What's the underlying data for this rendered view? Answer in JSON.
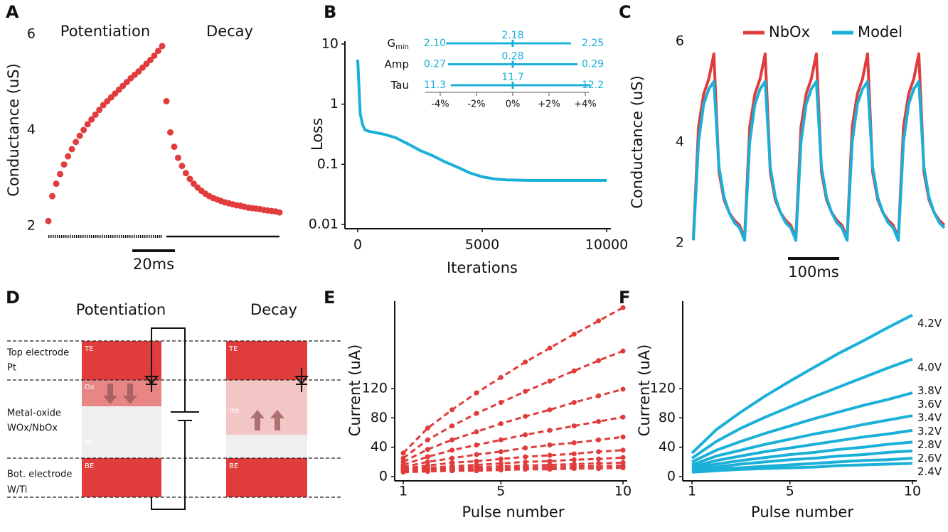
{
  "chart_data": [
    {
      "label": "A",
      "type": "scatter",
      "ylabel": "Conductance (uS)",
      "ylim": [
        2,
        6
      ],
      "yticks": [
        2,
        4,
        6
      ],
      "scale_bar": "20ms",
      "series": [
        {
          "name": "Potentiation",
          "color": "#e03c3c",
          "values": [
            2.1,
            2.62,
            2.88,
            3.08,
            3.28,
            3.45,
            3.6,
            3.75,
            3.88,
            4.0,
            4.12,
            4.22,
            4.32,
            4.42,
            4.52,
            4.6,
            4.68,
            4.76,
            4.84,
            4.92,
            5.0,
            5.08,
            5.15,
            5.22,
            5.3,
            5.38,
            5.46,
            5.55,
            5.65,
            5.75
          ]
        },
        {
          "name": "Decay",
          "color": "#e03c3c",
          "values": [
            4.6,
            3.95,
            3.65,
            3.42,
            3.25,
            3.1,
            2.98,
            2.88,
            2.8,
            2.73,
            2.67,
            2.62,
            2.58,
            2.55,
            2.52,
            2.49,
            2.47,
            2.45,
            2.43,
            2.42,
            2.4,
            2.38,
            2.37,
            2.36,
            2.35,
            2.33,
            2.32,
            2.31,
            2.3,
            2.28
          ]
        }
      ]
    },
    {
      "label": "B",
      "type": "line",
      "log_y": true,
      "color": "#1ab0d8",
      "xlabel": "Iterations",
      "ylabel": "Loss",
      "x": [
        0,
        100,
        200,
        300,
        500,
        1000,
        1500,
        2000,
        2500,
        3000,
        3500,
        4000,
        4500,
        5000,
        5500,
        6000,
        7000,
        8000,
        9000,
        10000
      ],
      "values": [
        5.5,
        0.7,
        0.45,
        0.37,
        0.35,
        0.32,
        0.28,
        0.22,
        0.17,
        0.14,
        0.11,
        0.09,
        0.072,
        0.062,
        0.057,
        0.055,
        0.054,
        0.054,
        0.054,
        0.054
      ],
      "xlim": [
        0,
        10000
      ],
      "xticks": [
        0,
        5000,
        10000
      ],
      "ylim": [
        0.01,
        10
      ],
      "yticks": [
        0.01,
        0.1,
        1,
        10
      ],
      "inset": {
        "rows": [
          {
            "name": "G",
            "subscript": "min",
            "values": [
              2.1,
              2.18,
              2.25
            ],
            "value_labels": [
              "2.10",
              "2.18",
              "2.25"
            ]
          },
          {
            "name": "Amp",
            "values": [
              0.27,
              0.28,
              0.29
            ]
          },
          {
            "name": "Tau",
            "values": [
              11.3,
              11.7,
              12.2
            ]
          }
        ],
        "xticks": [
          {
            "value": -4,
            "label": "-4%"
          },
          {
            "value": -2,
            "label": "-2%"
          },
          {
            "value": 0,
            "label": "0%"
          },
          {
            "value": 2,
            "label": "+2%"
          },
          {
            "value": 4,
            "label": "+4%"
          }
        ]
      }
    },
    {
      "label": "C",
      "type": "line",
      "ylabel": "Conductance (uS)",
      "ylim": [
        2,
        6
      ],
      "yticks": [
        2,
        4,
        6
      ],
      "xlim": [
        0,
        490
      ],
      "scale_bar": "100ms",
      "x": [
        0,
        10,
        20,
        30,
        40,
        50,
        60,
        70,
        80,
        90,
        100,
        110,
        120,
        130,
        140,
        150,
        160,
        170,
        180,
        190,
        200,
        210,
        220,
        230,
        240,
        250,
        260,
        270,
        280,
        290,
        300,
        310,
        320,
        330,
        340,
        350,
        360,
        370,
        380,
        390,
        400,
        410,
        420,
        430,
        440,
        450,
        460,
        470,
        480,
        490
      ],
      "series": [
        {
          "name": "NbOx",
          "color": "#e03c3c",
          "values": [
            2.1,
            4.3,
            4.95,
            5.25,
            5.75,
            3.4,
            2.85,
            2.6,
            2.45,
            2.35,
            2.1,
            4.3,
            4.95,
            5.25,
            5.75,
            3.4,
            2.85,
            2.6,
            2.45,
            2.35,
            2.1,
            4.3,
            4.95,
            5.25,
            5.75,
            3.4,
            2.85,
            2.6,
            2.45,
            2.35,
            2.1,
            4.3,
            4.95,
            5.25,
            5.75,
            3.4,
            2.85,
            2.6,
            2.45,
            2.35,
            2.1,
            4.3,
            4.95,
            5.25,
            5.75,
            3.4,
            2.85,
            2.6,
            2.45,
            2.35
          ]
        },
        {
          "name": "Model",
          "color": "#1ab0d8",
          "values": [
            2.05,
            4.0,
            4.75,
            5.05,
            5.2,
            3.5,
            2.9,
            2.6,
            2.4,
            2.3,
            2.05,
            4.0,
            4.75,
            5.05,
            5.2,
            3.5,
            2.9,
            2.6,
            2.4,
            2.3,
            2.05,
            4.0,
            4.75,
            5.05,
            5.2,
            3.5,
            2.9,
            2.6,
            2.4,
            2.3,
            2.05,
            4.0,
            4.75,
            5.05,
            5.2,
            3.5,
            2.9,
            2.6,
            2.4,
            2.3,
            2.05,
            4.0,
            4.75,
            5.05,
            5.2,
            3.5,
            2.9,
            2.6,
            2.4,
            2.3
          ]
        }
      ]
    },
    {
      "label": "E",
      "type": "line",
      "dashed": true,
      "markers": true,
      "color": "#e03c3c",
      "xlabel": "Pulse number",
      "ylabel": "Current (uA)",
      "x": [
        1,
        2,
        3,
        4,
        5,
        6,
        7,
        8,
        9,
        10
      ],
      "xlim": [
        1,
        10
      ],
      "xticks": [
        1,
        5,
        10
      ],
      "ylim": [
        0,
        235
      ],
      "yticks": [
        0,
        40,
        80,
        120
      ],
      "series": [
        {
          "values": [
            32,
            66,
            91,
            114,
            135,
            156,
            175,
            194,
            212,
            230
          ]
        },
        {
          "values": [
            25,
            50,
            69,
            86,
            101,
            116,
            130,
            144,
            158,
            171
          ]
        },
        {
          "values": [
            20,
            37,
            50,
            61,
            72,
            82,
            91,
            101,
            110,
            119
          ]
        },
        {
          "values": [
            16,
            27,
            36,
            43,
            50,
            57,
            63,
            69,
            75,
            81
          ]
        },
        {
          "values": [
            13,
            20,
            25,
            30,
            34,
            39,
            43,
            46,
            50,
            54
          ]
        },
        {
          "values": [
            11,
            15,
            19,
            21,
            24,
            27,
            29,
            31,
            34,
            36
          ]
        },
        {
          "values": [
            9,
            12,
            14,
            16,
            18,
            20,
            21,
            23,
            24,
            26
          ]
        },
        {
          "values": [
            8,
            10,
            11,
            13,
            14,
            15,
            16,
            17,
            18,
            19
          ]
        },
        {
          "values": [
            7,
            8,
            9,
            10,
            11,
            12,
            13,
            14,
            14,
            15
          ]
        },
        {
          "values": [
            6,
            7,
            8,
            8,
            9,
            10,
            10,
            11,
            11,
            12
          ]
        }
      ]
    },
    {
      "label": "F",
      "type": "line",
      "color": "#1ab0d8",
      "xlabel": "Pulse number",
      "ylabel": "Current (uA)",
      "x": [
        1,
        2,
        3,
        4,
        5,
        6,
        7,
        8,
        9,
        10
      ],
      "xlim": [
        1,
        10
      ],
      "xticks": [
        1,
        5,
        10
      ],
      "ylim": [
        0,
        235
      ],
      "yticks": [
        0,
        40,
        80,
        120
      ],
      "series": [
        {
          "name": "4.2V",
          "values": [
            32,
            64,
            88,
            110,
            130,
            149,
            168,
            185,
            203,
            220
          ]
        },
        {
          "name": "4.0V",
          "values": [
            25,
            48,
            66,
            81,
            95,
            109,
            122,
            135,
            148,
            160
          ]
        },
        {
          "name": "3.8V",
          "values": [
            20,
            36,
            48,
            59,
            69,
            79,
            88,
            97,
            105,
            114
          ]
        },
        {
          "name": "3.6V",
          "values": [
            16,
            28,
            36,
            44,
            51,
            58,
            64,
            71,
            77,
            83
          ]
        },
        {
          "name": "3.4V",
          "values": [
            13,
            22,
            28,
            34,
            39,
            44,
            49,
            54,
            58,
            63
          ]
        },
        {
          "name": "3.2V",
          "values": [
            11,
            17,
            22,
            26,
            30,
            33,
            37,
            40,
            44,
            47
          ]
        },
        {
          "name": "2.8V",
          "values": [
            9,
            13,
            17,
            20,
            23,
            25,
            28,
            30,
            33,
            35
          ]
        },
        {
          "name": "2.6V",
          "values": [
            7,
            10,
            12,
            14,
            16,
            18,
            20,
            22,
            23,
            25
          ]
        },
        {
          "name": "2.4V",
          "values": [
            6,
            8,
            10,
            11,
            12,
            13,
            15,
            16,
            17,
            18
          ]
        }
      ]
    }
  ],
  "diagram": {
    "label": "D",
    "titles": [
      "Potentiation",
      "Decay"
    ],
    "layers": [
      {
        "name": "Top electrode",
        "material": "Pt"
      },
      {
        "name": "Metal-oxide",
        "material": "WOx/NbOx"
      },
      {
        "name": "Bot. electrode",
        "material": "W/Ti"
      }
    ],
    "left_regions": [
      "TE",
      "Ox",
      "Vo",
      "BE"
    ],
    "right_regions": [
      "TE",
      "Ins",
      "BE"
    ]
  }
}
